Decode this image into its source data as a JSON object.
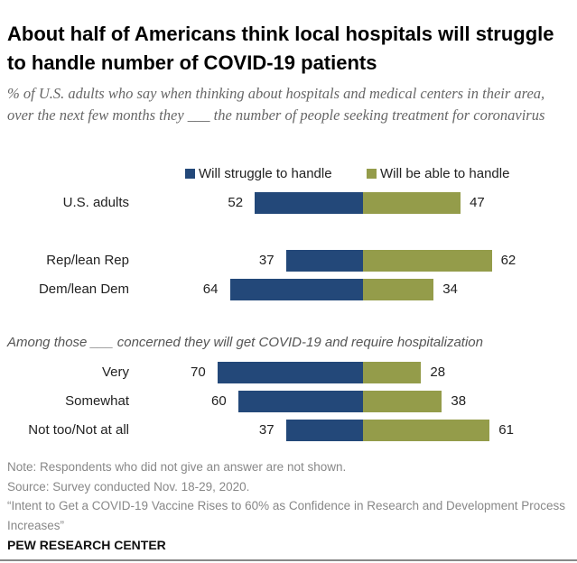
{
  "title": "About half of Americans think local hospitals will struggle to handle number of COVID-19 patients",
  "subtitle": "% of U.S. adults who say when thinking about hospitals and medical centers in their area, over the next few months they ___ the number of people seeking treatment for coronavirus",
  "colors": {
    "struggle": "#234879",
    "able": "#949c4a"
  },
  "chart_data": {
    "type": "bar",
    "orientation": "diverging-horizontal",
    "series": [
      {
        "name": "Will struggle to handle",
        "values": [
          52,
          37,
          64,
          70,
          60,
          37
        ]
      },
      {
        "name": "Will be able to handle",
        "values": [
          47,
          62,
          34,
          28,
          38,
          61
        ]
      }
    ],
    "categories": [
      "U.S. adults",
      "Rep/lean Rep",
      "Dem/lean Dem",
      "Very",
      "Somewhat",
      "Not too/Not at all"
    ],
    "section_label": "Among those ___ concerned they will get COVID-19 and require hospitalization",
    "legend": "top"
  },
  "notes": {
    "note": "Note: Respondents who did not give an answer are not shown.",
    "source": "Source: Survey conducted Nov. 18-29, 2020.",
    "report": "“Intent to Get a COVID-19 Vaccine Rises to 60% as Confidence in Research and Development Process Increases”"
  },
  "brand": "PEW RESEARCH CENTER"
}
